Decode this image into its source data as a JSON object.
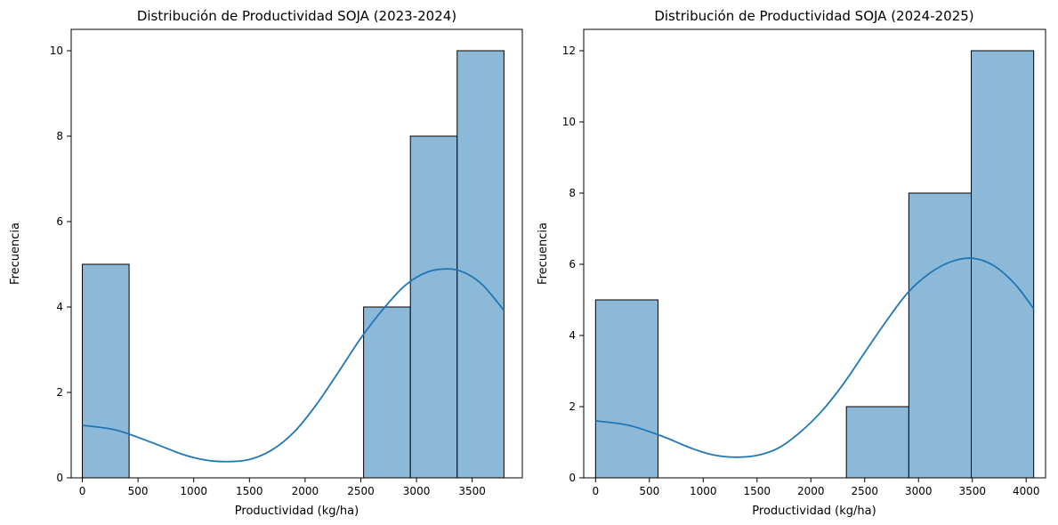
{
  "chart_data": [
    {
      "type": "bar",
      "title": "Distribución de Productividad SOJA (2023-2024)",
      "xlabel": "Productividad (kg/ha)",
      "ylabel": "Frecuencia",
      "xlim": [
        -100,
        3950
      ],
      "ylim": [
        0,
        10.5
      ],
      "xticks": [
        0,
        500,
        1000,
        1500,
        2000,
        2500,
        3000,
        3500
      ],
      "yticks": [
        0,
        2,
        4,
        6,
        8,
        10
      ],
      "bins": [
        {
          "x0": 0,
          "x1": 420,
          "count": 5
        },
        {
          "x0": 2525,
          "x1": 2945,
          "count": 4
        },
        {
          "x0": 2945,
          "x1": 3365,
          "count": 8
        },
        {
          "x0": 3365,
          "x1": 3785,
          "count": 10
        }
      ],
      "kde": {
        "x": [
          0,
          300,
          600,
          900,
          1100,
          1300,
          1500,
          1700,
          1900,
          2100,
          2300,
          2500,
          2700,
          2900,
          3100,
          3300,
          3450,
          3600,
          3785
        ],
        "y": [
          1.23,
          1.12,
          0.85,
          0.55,
          0.42,
          0.38,
          0.43,
          0.65,
          1.07,
          1.71,
          2.48,
          3.27,
          3.95,
          4.51,
          4.82,
          4.89,
          4.78,
          4.5,
          3.92
        ]
      },
      "colors": {
        "bar": "#8db9d9",
        "edge": "#000000",
        "kde": "#1f77b4"
      }
    },
    {
      "type": "bar",
      "title": "Distribución de Productividad SOJA (2024-2025)",
      "xlabel": "Productividad (kg/ha)",
      "ylabel": "Frecuencia",
      "xlim": [
        -110,
        4180
      ],
      "ylim": [
        0,
        12.6
      ],
      "xticks": [
        0,
        500,
        1000,
        1500,
        2000,
        2500,
        3000,
        3500,
        4000
      ],
      "yticks": [
        0,
        2,
        4,
        6,
        8,
        10,
        12
      ],
      "bins": [
        {
          "x0": 0,
          "x1": 580,
          "count": 5
        },
        {
          "x0": 2330,
          "x1": 2910,
          "count": 2
        },
        {
          "x0": 2910,
          "x1": 3490,
          "count": 8
        },
        {
          "x0": 3490,
          "x1": 4070,
          "count": 12
        }
      ],
      "kde": {
        "x": [
          0,
          300,
          600,
          900,
          1100,
          1300,
          1500,
          1700,
          1900,
          2100,
          2300,
          2500,
          2700,
          2900,
          3100,
          3300,
          3500,
          3700,
          3900,
          4070
        ],
        "y": [
          1.6,
          1.48,
          1.19,
          0.82,
          0.64,
          0.58,
          0.63,
          0.84,
          1.28,
          1.87,
          2.63,
          3.52,
          4.4,
          5.2,
          5.74,
          6.07,
          6.17,
          5.96,
          5.43,
          4.75
        ]
      },
      "colors": {
        "bar": "#8db9d9",
        "edge": "#000000",
        "kde": "#1f77b4"
      }
    }
  ]
}
